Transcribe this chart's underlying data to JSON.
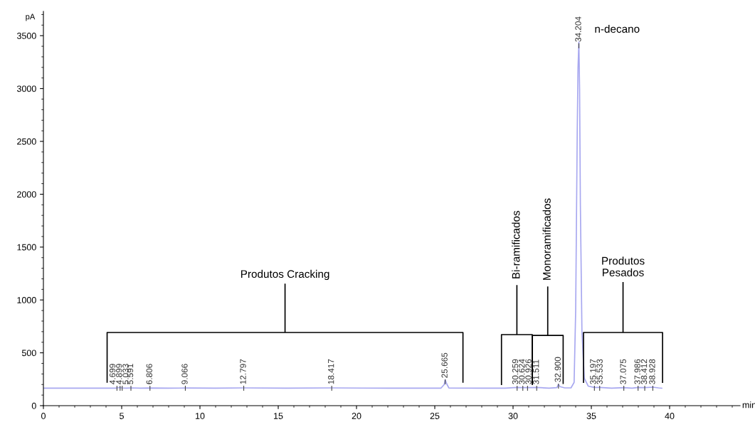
{
  "chart_data": {
    "type": "line",
    "xlabel": "min",
    "ylabel": "pA",
    "xlim": [
      0,
      44.5
    ],
    "xticks": [
      0,
      5,
      10,
      15,
      20,
      25,
      30,
      35,
      40
    ],
    "ylim": [
      0,
      3730
    ],
    "yticks": [
      0,
      500,
      1000,
      1500,
      2000,
      2500,
      3000,
      3500
    ],
    "grid": false,
    "legend": false,
    "marker": "none",
    "line_style": "solid",
    "series": [
      {
        "color": "#a8a8f0",
        "x": [
          0,
          2,
          4,
          4.6,
          4.7,
          4.8,
          4.9,
          5.03,
          5.3,
          5.59,
          6.2,
          6.8,
          8,
          9.07,
          11,
          12.8,
          15.5,
          18.42,
          22,
          25.4,
          25.6,
          25.665,
          25.75,
          25.9,
          28,
          29.5,
          30.26,
          30.62,
          30.93,
          31.51,
          32.3,
          32.8,
          32.9,
          33.0,
          33.3,
          33.7,
          33.9,
          34.0,
          34.1,
          34.15,
          34.204,
          34.25,
          34.3,
          34.4,
          34.55,
          34.8,
          35.2,
          35.53,
          36.3,
          37.08,
          37.6,
          37.99,
          38.41,
          38.93,
          39.3,
          39.5
        ],
        "values": [
          165,
          165,
          165,
          166,
          168,
          170,
          170,
          168,
          166,
          168,
          166,
          167,
          165,
          167,
          165,
          168,
          165,
          168,
          165,
          166,
          200,
          245,
          210,
          167,
          165,
          165,
          172,
          170,
          170,
          172,
          166,
          170,
          200,
          180,
          168,
          168,
          220,
          900,
          2600,
          3200,
          3440,
          3000,
          1900,
          700,
          260,
          185,
          172,
          172,
          166,
          170,
          166,
          172,
          170,
          175,
          168,
          165
        ]
      }
    ],
    "annotations": [
      {
        "text": "4.699",
        "x": 4.699,
        "y": 200
      },
      {
        "text": "4.899",
        "x": 4.899,
        "y": 200
      },
      {
        "text": "5.033",
        "x": 5.033,
        "y": 200
      },
      {
        "text": "5.591",
        "x": 5.591,
        "y": 200
      },
      {
        "text": "6.806",
        "x": 6.806,
        "y": 200
      },
      {
        "text": "9.066",
        "x": 9.066,
        "y": 200
      },
      {
        "text": "12.797",
        "x": 12.797,
        "y": 200
      },
      {
        "text": "18.417",
        "x": 18.417,
        "y": 200
      },
      {
        "text": "25.665",
        "x": 25.665,
        "y": 260
      },
      {
        "text": "30.259",
        "x": 30.259,
        "y": 200
      },
      {
        "text": "30.624",
        "x": 30.624,
        "y": 200
      },
      {
        "text": "30.926",
        "x": 30.926,
        "y": 200
      },
      {
        "text": "31.511",
        "x": 31.511,
        "y": 200
      },
      {
        "text": "32.900",
        "x": 32.9,
        "y": 220
      },
      {
        "text": "34.204",
        "x": 34.204,
        "y": 3440
      },
      {
        "text": "35.197",
        "x": 35.197,
        "y": 200
      },
      {
        "text": "35.533",
        "x": 35.533,
        "y": 200
      },
      {
        "text": "37.075",
        "x": 37.075,
        "y": 200
      },
      {
        "text": "37.986",
        "x": 37.986,
        "y": 200
      },
      {
        "text": "38.412",
        "x": 38.412,
        "y": 200
      },
      {
        "text": "38.928",
        "x": 38.928,
        "y": 200
      },
      "Produtos Cracking",
      "Bi-ramificados",
      "Monoramificados",
      "Produtos\nPesados",
      "n-decano"
    ]
  }
}
